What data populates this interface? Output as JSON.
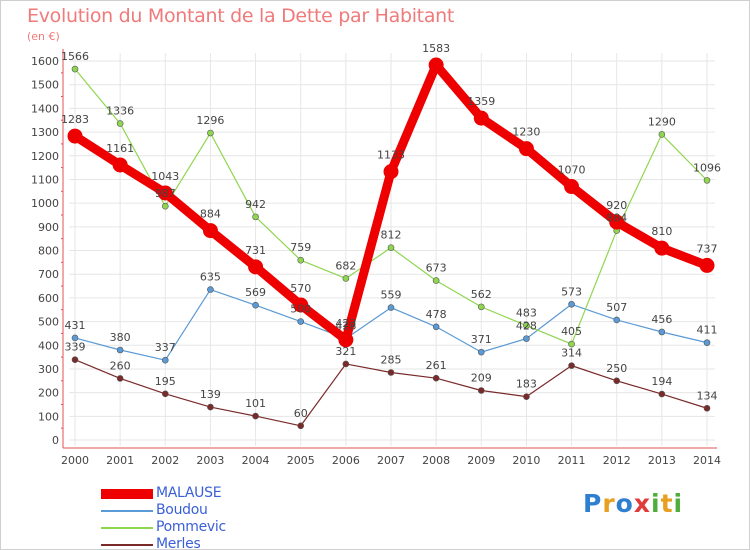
{
  "title": "Evolution du Montant de la Dette par Habitant",
  "unit": "(en €)",
  "logo": {
    "letters": [
      "P",
      "r",
      "o",
      "x",
      "i",
      "t",
      "i"
    ],
    "colors": [
      "#2f7fd0",
      "#e8a020",
      "#2f7fd0",
      "#e03a3a",
      "#4fae3a",
      "#e8a020",
      "#4fae3a"
    ]
  },
  "chart_data": {
    "type": "line",
    "x": [
      "2000",
      "2001",
      "2002",
      "2003",
      "2004",
      "2005",
      "2006",
      "2007",
      "2008",
      "2009",
      "2010",
      "2011",
      "2012",
      "2013",
      "2014"
    ],
    "y_ticks": [
      "0",
      "100",
      "200",
      "300",
      "400",
      "500",
      "600",
      "700",
      "800",
      "900",
      "1000",
      "1100",
      "1200",
      "1300",
      "1400",
      "1500",
      "1600"
    ],
    "ylim": [
      0,
      1600
    ],
    "grid": true,
    "legend_position": "bottom-left",
    "series": [
      {
        "name": "MALAUSE",
        "color": "#ee0000",
        "emphasis": true,
        "values": [
          1283,
          1161,
          1043,
          884,
          731,
          570,
          423,
          1133,
          1583,
          1359,
          1230,
          1070,
          920,
          810,
          737
        ],
        "labels": [
          "1283",
          "1161",
          "1043",
          "884",
          "731",
          "570",
          "423",
          "1133",
          "1583",
          "1359",
          "1230",
          "1070",
          "920",
          "810",
          "737"
        ]
      },
      {
        "name": "Boudou",
        "color": "#5a9ad6",
        "values": [
          431,
          380,
          337,
          635,
          569,
          500,
          428,
          559,
          478,
          371,
          428,
          573,
          507,
          456,
          411
        ],
        "labels": [
          "431",
          "380",
          "337",
          "635",
          "569",
          "500",
          "428",
          "559",
          "478",
          "371",
          "428",
          "573",
          "507",
          "456",
          "411"
        ]
      },
      {
        "name": "Pommevic",
        "color": "#8fd64f",
        "values": [
          1566,
          1336,
          987,
          1296,
          942,
          759,
          682,
          812,
          673,
          562,
          483,
          405,
          884,
          1290,
          1096
        ],
        "labels": [
          "1566",
          "1336",
          "987",
          "1296",
          "942",
          "759",
          "682",
          "812",
          "673",
          "562",
          "483",
          "405",
          "884",
          "1290",
          "1096"
        ]
      },
      {
        "name": "Merles",
        "color": "#7a2a2a",
        "values": [
          339,
          260,
          195,
          139,
          101,
          60,
          321,
          285,
          261,
          209,
          183,
          314,
          250,
          194,
          134
        ],
        "labels": [
          "339",
          "260",
          "195",
          "139",
          "101",
          "60",
          "321",
          "285",
          "261",
          "209",
          "183",
          "314",
          "250",
          "194",
          "134"
        ]
      }
    ]
  }
}
